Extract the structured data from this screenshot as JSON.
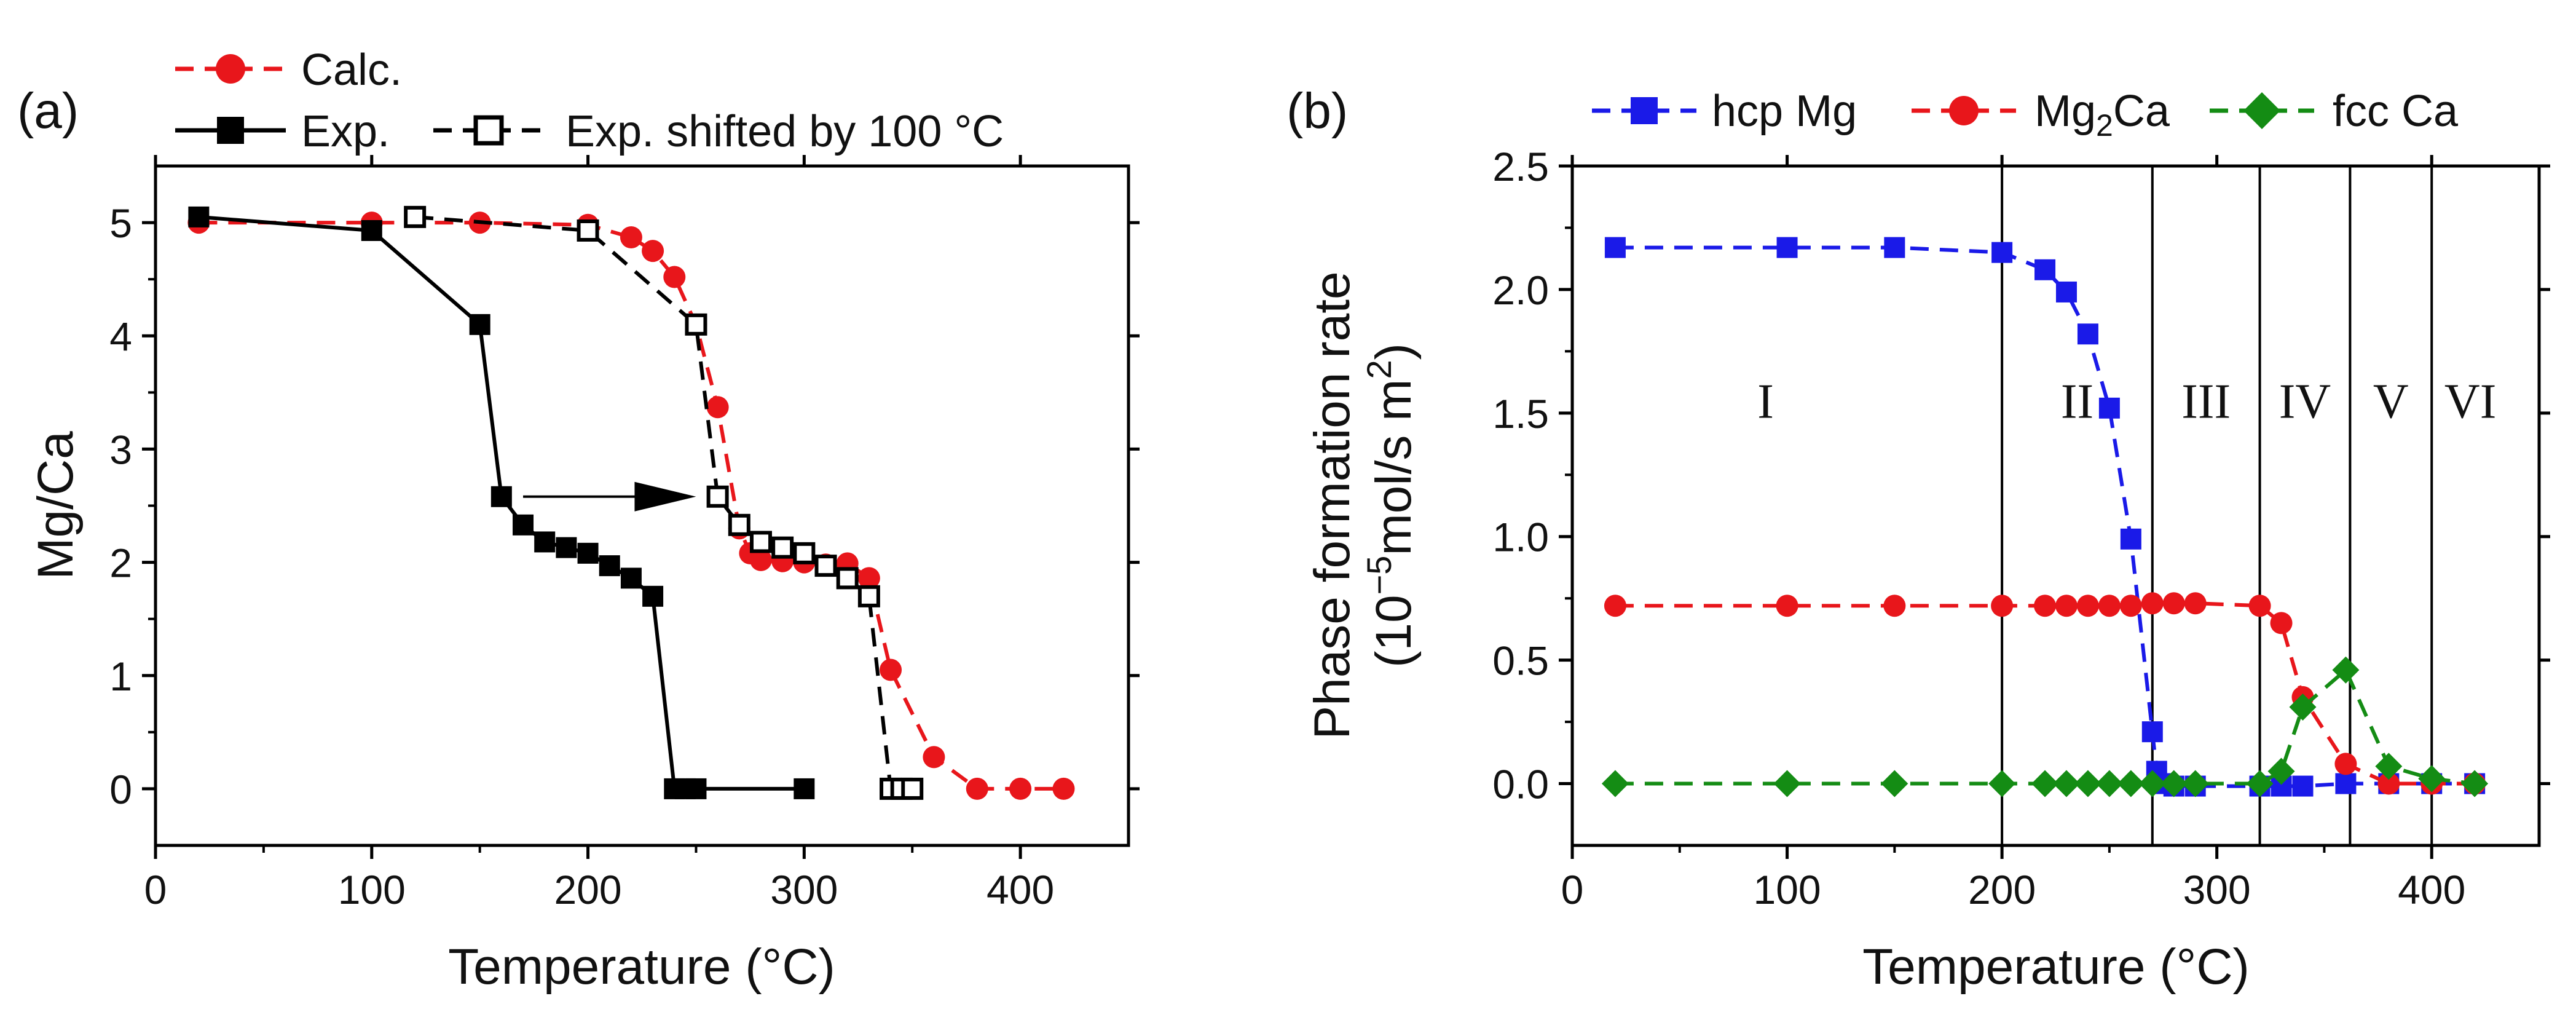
{
  "chart_data": [
    {
      "type": "line",
      "panel_label": "(a)",
      "xlabel": "Temperature (°C)",
      "ylabel": "Mg/Ca",
      "xlim": [
        0,
        450
      ],
      "ylim": [
        -0.5,
        5.5
      ],
      "xticks": [
        0,
        100,
        200,
        300,
        400
      ],
      "yticks": [
        0,
        1,
        2,
        3,
        4,
        5
      ],
      "legend": [
        {
          "series": 0,
          "label": "Calc."
        },
        {
          "series": 1,
          "label": "Exp."
        },
        {
          "series": 2,
          "label": "Exp. shifted by 100 °C"
        }
      ],
      "annotations": [
        {
          "type": "arrow",
          "from": [
            170,
            2.58
          ],
          "to": [
            250,
            2.58
          ],
          "note": "shift arrow"
        }
      ],
      "series": [
        {
          "name": "Calc.",
          "color": "#e8161b",
          "line": "dashed",
          "marker": "circle-filled",
          "x": [
            20,
            100,
            150,
            200,
            220,
            230,
            240,
            250,
            260,
            270,
            275,
            280,
            290,
            300,
            310,
            320,
            330,
            340,
            360,
            380,
            400,
            420
          ],
          "y": [
            5.0,
            5.0,
            5.0,
            4.98,
            4.87,
            4.75,
            4.52,
            4.1,
            3.37,
            2.3,
            2.08,
            2.02,
            2.01,
            2.0,
            1.98,
            1.99,
            1.86,
            1.05,
            0.28,
            0.0,
            0.0,
            0.0
          ]
        },
        {
          "name": "Exp.",
          "color": "#000000",
          "line": "solid",
          "marker": "square-filled",
          "x": [
            20,
            100,
            150,
            160,
            170,
            180,
            190,
            200,
            210,
            220,
            230,
            240,
            245,
            250,
            300
          ],
          "y": [
            5.05,
            4.93,
            4.1,
            2.58,
            2.33,
            2.18,
            2.13,
            2.08,
            1.97,
            1.86,
            1.7,
            0.0,
            0.0,
            0.0,
            0.0
          ]
        },
        {
          "name": "Exp. shifted by 100 °C",
          "color": "#000000",
          "line": "dashed",
          "marker": "square-open",
          "x": [
            120,
            200,
            250,
            260,
            270,
            280,
            290,
            300,
            310,
            320,
            330,
            340,
            345,
            350
          ],
          "y": [
            5.05,
            4.93,
            4.1,
            2.58,
            2.33,
            2.18,
            2.13,
            2.08,
            1.97,
            1.86,
            1.7,
            0.0,
            0.0,
            0.0
          ]
        }
      ]
    },
    {
      "type": "line",
      "panel_label": "(b)",
      "xlabel": "Temperature (°C)",
      "ylabel_line1": "Phase formation rate",
      "ylabel_line2": {
        "open": "(10",
        "exp": "−5",
        "mid": "mol/s m",
        "exp2": "2",
        "close": ")"
      },
      "xlim": [
        0,
        450
      ],
      "ylim": [
        -0.25,
        2.5
      ],
      "xticks": [
        0,
        100,
        200,
        300,
        400
      ],
      "yticks": [
        "0.0",
        "0.5",
        "1.0",
        "1.5",
        "2.0",
        "2.5"
      ],
      "vlines": [
        200,
        270,
        320,
        362,
        400
      ],
      "regions": [
        {
          "label": "I",
          "x": 90
        },
        {
          "label": "II",
          "x": 235
        },
        {
          "label": "III",
          "x": 295
        },
        {
          "label": "IV",
          "x": 341
        },
        {
          "label": "V",
          "x": 381
        },
        {
          "label": "VI",
          "x": 418
        }
      ],
      "region_label_y": 1.55,
      "legend": [
        {
          "series": 0,
          "label": "hcp Mg"
        },
        {
          "series": 1,
          "label_main": "Mg",
          "label_sub": "2",
          "label_end": "Ca"
        },
        {
          "series": 2,
          "label": "fcc Ca"
        }
      ],
      "series": [
        {
          "name": "hcp Mg",
          "color": "#1a1ae8",
          "line": "dashed",
          "marker": "square-filled",
          "x": [
            20,
            100,
            150,
            200,
            220,
            230,
            240,
            250,
            260,
            270,
            272,
            275,
            280,
            290,
            320,
            330,
            340,
            360,
            380,
            400,
            420
          ],
          "y": [
            2.17,
            2.17,
            2.17,
            2.15,
            2.08,
            1.99,
            1.82,
            1.52,
            0.99,
            0.21,
            0.05,
            0.0,
            -0.01,
            -0.01,
            -0.01,
            -0.01,
            -0.01,
            0.0,
            0.0,
            0.0,
            0.0
          ]
        },
        {
          "name": "Mg2Ca",
          "color": "#e8161b",
          "line": "dashed",
          "marker": "circle-filled",
          "x": [
            20,
            100,
            150,
            200,
            220,
            230,
            240,
            250,
            260,
            270,
            280,
            290,
            320,
            330,
            340,
            360,
            380,
            400,
            420
          ],
          "y": [
            0.72,
            0.72,
            0.72,
            0.72,
            0.72,
            0.72,
            0.72,
            0.72,
            0.72,
            0.73,
            0.73,
            0.73,
            0.72,
            0.65,
            0.35,
            0.08,
            0.0,
            0.0,
            0.0
          ]
        },
        {
          "name": "fcc Ca",
          "color": "#148c14",
          "line": "dashed",
          "marker": "diamond-filled",
          "x": [
            20,
            100,
            150,
            200,
            220,
            230,
            240,
            250,
            260,
            270,
            280,
            290,
            320,
            330,
            340,
            360,
            380,
            400,
            420
          ],
          "y": [
            0.0,
            0.0,
            0.0,
            0.0,
            0.0,
            0.0,
            0.0,
            0.0,
            0.0,
            0.0,
            0.0,
            0.0,
            0.0,
            0.05,
            0.31,
            0.46,
            0.07,
            0.02,
            0.0
          ]
        }
      ]
    }
  ]
}
